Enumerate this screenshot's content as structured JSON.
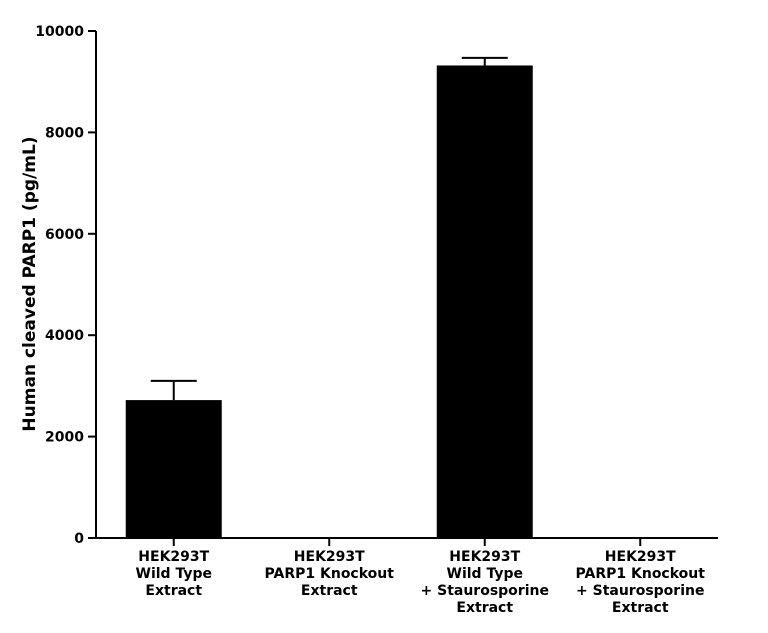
{
  "chart_data": {
    "type": "bar",
    "title": "",
    "xlabel": "",
    "ylabel": "Human cleaved PARP1 (pg/mL)",
    "ylim": [
      0,
      10000
    ],
    "yticks": [
      0,
      2000,
      4000,
      6000,
      8000,
      10000
    ],
    "grid": false,
    "legend": "none",
    "categories": [
      [
        "HEK293T",
        "Wild Type",
        "Extract"
      ],
      [
        "HEK293T",
        "PARP1 Knockout",
        "Extract"
      ],
      [
        "HEK293T",
        "Wild Type",
        "+ Staurosporine",
        "Extract"
      ],
      [
        "HEK293T",
        "PARP1 Knockout",
        "+ Staurosporine",
        "Extract"
      ]
    ],
    "values": [
      2720,
      0,
      9320,
      0
    ],
    "errors": [
      380,
      0,
      150,
      0
    ],
    "bar_color": "#000000"
  }
}
